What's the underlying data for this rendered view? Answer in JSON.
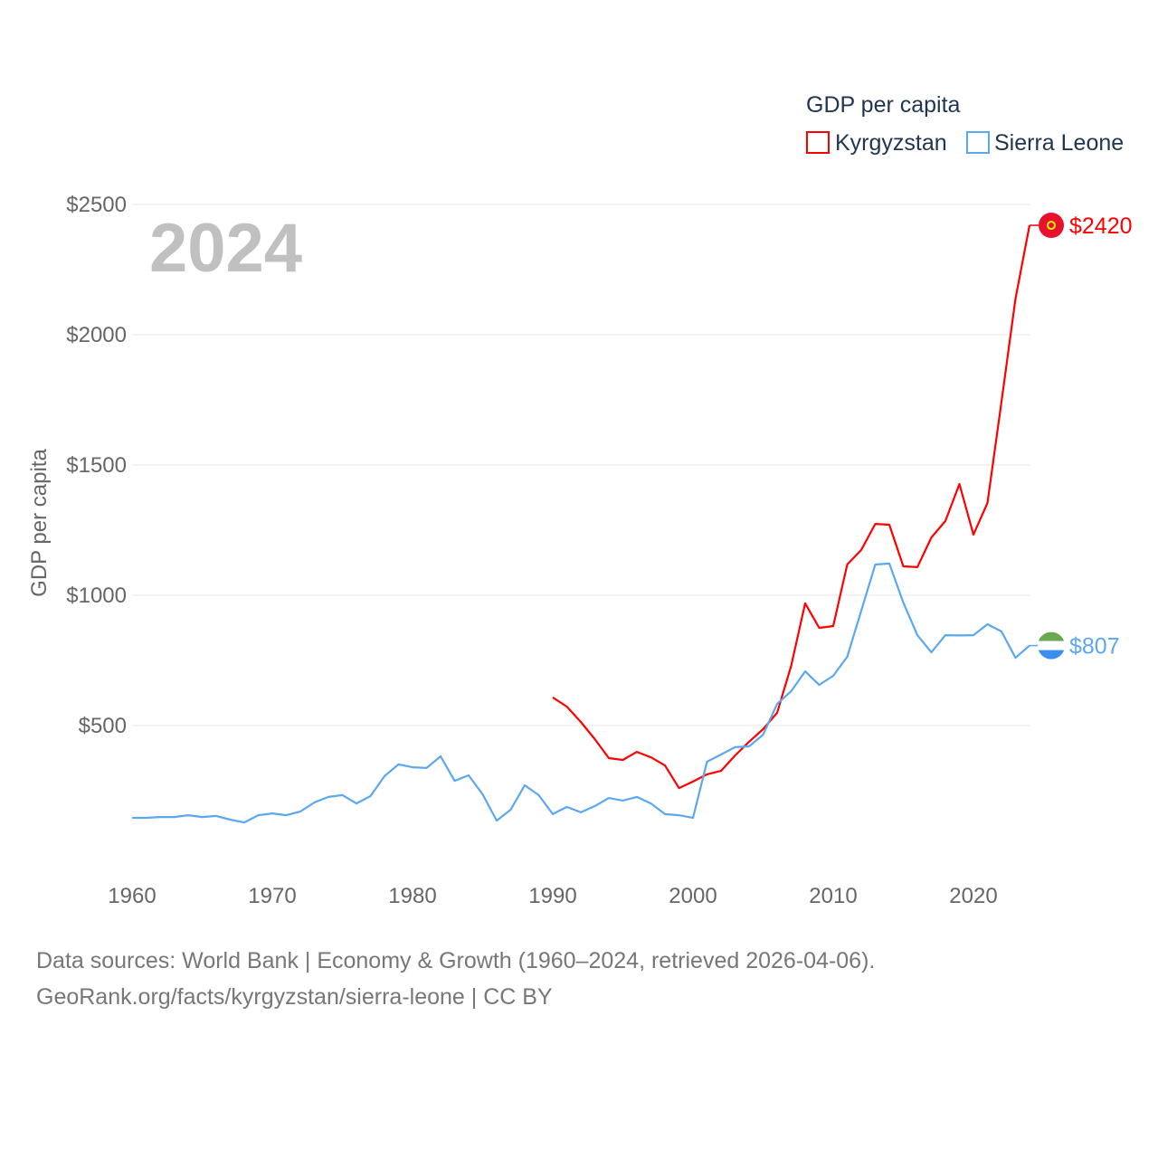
{
  "chart_data": {
    "type": "line",
    "title": "GDP per capita",
    "ylabel": "GDP per capita",
    "xlabel": "",
    "year_label": "2024",
    "xlim": [
      1960,
      2024
    ],
    "ylim": [
      0,
      2500
    ],
    "x_ticks": [
      "1960",
      "1970",
      "1980",
      "1990",
      "2000",
      "2010",
      "2020"
    ],
    "x_tick_values": [
      1960,
      1970,
      1980,
      1990,
      2000,
      2010,
      2020
    ],
    "y_ticks": [
      "$500",
      "$1000",
      "$1500",
      "$2000",
      "$2500"
    ],
    "y_tick_values": [
      500,
      1000,
      1500,
      2000,
      2500
    ],
    "grid": true,
    "legend_placement": "top-right",
    "series": [
      {
        "name": "Kyrgyzstan",
        "color": "#ff0000",
        "end_label": "$2420",
        "start_year": 1990,
        "values": [
          608,
          573,
          514,
          448,
          375,
          368,
          399,
          378,
          347,
          260,
          285,
          313,
          326,
          385,
          438,
          486,
          549,
          729,
          969,
          875,
          882,
          1118,
          1174,
          1274,
          1271,
          1111,
          1108,
          1222,
          1285,
          1427,
          1233,
          1354,
          1743,
          2139,
          2420
        ]
      },
      {
        "name": "Sierra Leone",
        "color": "#5ba8f0",
        "end_label": "$807",
        "start_year": 1960,
        "values": [
          146,
          146,
          149,
          149,
          156,
          149,
          153,
          139,
          128,
          156,
          163,
          156,
          170,
          205,
          226,
          233,
          201,
          229,
          306,
          351,
          340,
          337,
          382,
          288,
          309,
          236,
          135,
          177,
          271,
          233,
          160,
          188,
          167,
          191,
          222,
          212,
          226,
          201,
          160,
          156,
          146,
          361,
          389,
          417,
          420,
          465,
          583,
          632,
          708,
          656,
          691,
          764,
          941,
          1118,
          1122,
          972,
          847,
          781,
          847,
          846,
          847,
          889,
          861,
          760,
          807
        ]
      }
    ]
  },
  "footer": {
    "line1": "Data sources: World Bank | Economy & Growth (1960–2024, retrieved 2026-04-06).",
    "line2": "GeoRank.org/facts/kyrgyzstan/sierra-leone | CC BY"
  }
}
